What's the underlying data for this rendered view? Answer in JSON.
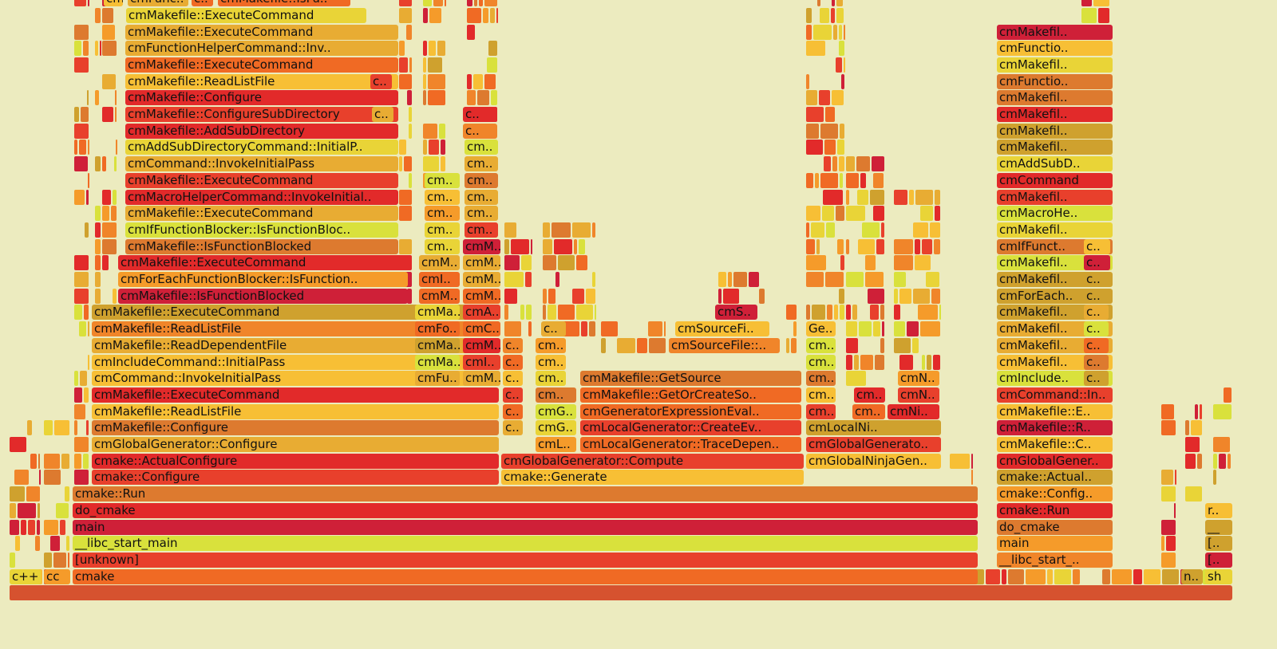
{
  "chart_data": {
    "type": "flame_graph",
    "palette": [
      "#e8402c",
      "#f06a24",
      "#f59b2a",
      "#f7bf35",
      "#e9d437",
      "#d9e13c",
      "#e22a2a",
      "#cf2038",
      "#e8ac33",
      "#dd7a2f",
      "#cfa12e",
      "#f0852a"
    ],
    "columns": [
      {
        "x0": 12,
        "x1": 1545,
        "stack": [
          ""
        ]
      },
      {
        "x0": 12,
        "x1": 52,
        "stack": [
          "c++"
        ]
      },
      {
        "x0": 55,
        "x1": 89,
        "stack": [
          "cc"
        ]
      },
      {
        "x0": 91,
        "x1": 1226,
        "stack": [
          "cmake",
          "[unknown]",
          "__libc_start_main",
          "main",
          "do_cmake",
          "cmake::Run"
        ]
      },
      {
        "x0": 115,
        "x1": 626,
        "stack": [
          "cmake::Configure",
          "cmake::ActualConfigure",
          "cmGlobalGenerator::Configure",
          "cmMakefile::Configure",
          "cmMakefile::ReadListFile",
          "cmMakefile::ExecuteCommand",
          "cmCommand::InvokeInitialPass",
          "cmIncludeCommand::InitialPass",
          "cmMakefile::ReadDependentFile",
          "cmMakefile::ReadListFile",
          "cmMakefile::ExecuteCommand"
        ]
      },
      {
        "x0": 148,
        "x1": 512,
        "stack": [
          "cmMakefile::IsFunctionBlocked",
          "cmForEachFunctionBlocker::IsFunction..",
          "cmMakefile::ExecuteCommand"
        ]
      },
      {
        "x0": 157,
        "x1": 500,
        "stack": [
          "cmMakefile::IsFunctionBlocked",
          "cmIfFunctionBlocker::IsFunctionBloc..",
          "cmMakefile::ExecuteCommand",
          "cmMacroHelperCommand::InvokeInitial..",
          "cmMakefile::ExecuteCommand",
          "cmCommand::InvokeInitialPass",
          "cmAddSubDirectoryCommand::InitialP..",
          "cmMakefile::AddSubDirectory",
          "cmMakefile::ConfigureSubDirectory",
          "cmMakefile::Configure",
          "cmMakefile::ReadListFile",
          "cmMakefile::ExecuteCommand",
          "cmFunctionHelperCommand::Inv..",
          "cmMakefile::ExecuteCommand"
        ]
      },
      {
        "x0": 628,
        "x1": 1008,
        "stack": [
          "cmake::Generate",
          "cmGlobalGenerator::Compute"
        ]
      },
      {
        "x0": 727,
        "x1": 1005,
        "stack": [
          "cmLocalGenerator::TraceDepen..",
          "cmLocalGenerator::CreateEv..",
          "cmGeneratorExpressionEval..",
          "cmMakefile::GetOrCreateSo..",
          "cmMakefile::GetSource"
        ]
      },
      {
        "x0": 1010,
        "x1": 1180,
        "stack": [
          "cmGlobalNinjaGen..",
          "cmGlobalGenerato..",
          "cmLocalNi.."
        ]
      },
      {
        "x0": 1249,
        "x1": 1395,
        "stack": [
          "__libc_start_..",
          "main",
          "do_cmake",
          "cmake::Run",
          "cmake::Config..",
          "cmake::Actual..",
          "cmGlobalGener..",
          "cmMakefile::C..",
          "cmMakefile::R..",
          "cmMakefile::E..",
          "cmCommand::In..",
          "cmInclude..",
          "cmMakefil..",
          "cmMakefil..",
          "cmMakefil..",
          "cmMakefil..",
          "cmForEach..",
          "cmMakefil..",
          "cmMakefil..",
          "cmIfFunct..",
          "cmMakefil..",
          "cmMacroHe..",
          "cmMakefil..",
          "cmCommand",
          "cmAddSubD..",
          "cmMakefil..",
          "cmMakefil..",
          "cmMakefil..",
          "cmMakefil..",
          "cmFunctio..",
          "cmMakefil..",
          "cmFunctio..",
          "cmMakefil.."
        ]
      },
      {
        "x0": 1510,
        "x1": 1545,
        "stack": [
          "sh",
          "[..",
          "[..",
          "__",
          "r.."
        ]
      }
    ],
    "extra_labels": [
      {
        "x0": 1480,
        "x1": 1508,
        "row": 1,
        "label": "n.."
      },
      {
        "x0": 130,
        "x1": 155,
        "row": 36,
        "label": "cm.."
      },
      {
        "x0": 160,
        "x1": 237,
        "row": 36,
        "label": "cmFunc.."
      },
      {
        "x0": 240,
        "x1": 268,
        "row": 36,
        "label": "c.."
      },
      {
        "x0": 273,
        "x1": 440,
        "row": 36,
        "label": "cmMakefile::IsFu.."
      },
      {
        "x0": 158,
        "x1": 460,
        "row": 35,
        "label": "cmMakefile::ExecuteCommand"
      },
      {
        "x0": 464,
        "x1": 492,
        "row": 31,
        "label": "c.."
      },
      {
        "x0": 466,
        "x1": 494,
        "row": 29,
        "label": "c.."
      },
      {
        "x0": 580,
        "x1": 624,
        "row": 29,
        "label": "c.."
      },
      {
        "x0": 580,
        "x1": 624,
        "row": 28,
        "label": "c.."
      },
      {
        "x0": 582,
        "x1": 625,
        "row": 27,
        "label": "cm.."
      },
      {
        "x0": 582,
        "x1": 625,
        "row": 26,
        "label": "cm.."
      },
      {
        "x0": 532,
        "x1": 577,
        "row": 25,
        "label": "cm.."
      },
      {
        "x0": 582,
        "x1": 625,
        "row": 25,
        "label": "cm.."
      },
      {
        "x0": 532,
        "x1": 577,
        "row": 24,
        "label": "cm.."
      },
      {
        "x0": 582,
        "x1": 625,
        "row": 24,
        "label": "cm.."
      },
      {
        "x0": 532,
        "x1": 577,
        "row": 23,
        "label": "cm.."
      },
      {
        "x0": 582,
        "x1": 625,
        "row": 23,
        "label": "cm.."
      },
      {
        "x0": 532,
        "x1": 577,
        "row": 22,
        "label": "cm.."
      },
      {
        "x0": 582,
        "x1": 625,
        "row": 22,
        "label": "cm.."
      },
      {
        "x0": 532,
        "x1": 577,
        "row": 21,
        "label": "cm.."
      },
      {
        "x0": 580,
        "x1": 628,
        "row": 21,
        "label": "cmM.."
      },
      {
        "x0": 525,
        "x1": 577,
        "row": 20,
        "label": "cmM.."
      },
      {
        "x0": 580,
        "x1": 628,
        "row": 20,
        "label": "cmM.."
      },
      {
        "x0": 525,
        "x1": 577,
        "row": 19,
        "label": "cmI.."
      },
      {
        "x0": 580,
        "x1": 628,
        "row": 19,
        "label": "cmM.."
      },
      {
        "x0": 525,
        "x1": 577,
        "row": 18,
        "label": "cmM.."
      },
      {
        "x0": 580,
        "x1": 628,
        "row": 18,
        "label": "cmM.."
      },
      {
        "x0": 520,
        "x1": 577,
        "row": 17,
        "label": "cmMa.."
      },
      {
        "x0": 580,
        "x1": 628,
        "row": 17,
        "label": "cmA.."
      },
      {
        "x0": 520,
        "x1": 577,
        "row": 16,
        "label": "cmFo.."
      },
      {
        "x0": 580,
        "x1": 628,
        "row": 16,
        "label": "cmC.."
      },
      {
        "x0": 520,
        "x1": 577,
        "row": 15,
        "label": "cmMa.."
      },
      {
        "x0": 580,
        "x1": 628,
        "row": 15,
        "label": "cmM.."
      },
      {
        "x0": 520,
        "x1": 577,
        "row": 14,
        "label": "cmMa.."
      },
      {
        "x0": 580,
        "x1": 628,
        "row": 14,
        "label": "cmI.."
      },
      {
        "x0": 520,
        "x1": 577,
        "row": 13,
        "label": "cmFu.."
      },
      {
        "x0": 580,
        "x1": 628,
        "row": 13,
        "label": "cmM.."
      },
      {
        "x0": 630,
        "x1": 656,
        "row": 15,
        "label": "c.."
      },
      {
        "x0": 630,
        "x1": 656,
        "row": 14,
        "label": "c.."
      },
      {
        "x0": 630,
        "x1": 656,
        "row": 13,
        "label": "c.."
      },
      {
        "x0": 630,
        "x1": 656,
        "row": 12,
        "label": "c.."
      },
      {
        "x0": 630,
        "x1": 656,
        "row": 11,
        "label": "c.."
      },
      {
        "x0": 630,
        "x1": 656,
        "row": 10,
        "label": "c.."
      },
      {
        "x0": 678,
        "x1": 710,
        "row": 16,
        "label": "c.."
      },
      {
        "x0": 671,
        "x1": 710,
        "row": 15,
        "label": "cm.."
      },
      {
        "x0": 671,
        "x1": 710,
        "row": 14,
        "label": "cm.."
      },
      {
        "x0": 671,
        "x1": 710,
        "row": 13,
        "label": "cm.."
      },
      {
        "x0": 671,
        "x1": 723,
        "row": 12,
        "label": "cm.."
      },
      {
        "x0": 671,
        "x1": 723,
        "row": 11,
        "label": "cmG.."
      },
      {
        "x0": 671,
        "x1": 723,
        "row": 10,
        "label": "cmG.."
      },
      {
        "x0": 671,
        "x1": 723,
        "row": 9,
        "label": "cmL.."
      },
      {
        "x0": 896,
        "x1": 950,
        "row": 17,
        "label": "cmS.."
      },
      {
        "x0": 846,
        "x1": 965,
        "row": 16,
        "label": "cmSourceFi.."
      },
      {
        "x0": 838,
        "x1": 978,
        "row": 15,
        "label": "cmSourceFile::.."
      },
      {
        "x0": 1010,
        "x1": 1048,
        "row": 16,
        "label": "Ge.."
      },
      {
        "x0": 1010,
        "x1": 1048,
        "row": 15,
        "label": "cm.."
      },
      {
        "x0": 1010,
        "x1": 1048,
        "row": 14,
        "label": "cm.."
      },
      {
        "x0": 1010,
        "x1": 1048,
        "row": 13,
        "label": "cm.."
      },
      {
        "x0": 1010,
        "x1": 1048,
        "row": 12,
        "label": "cm.."
      },
      {
        "x0": 1010,
        "x1": 1048,
        "row": 11,
        "label": "cm.."
      },
      {
        "x0": 1070,
        "x1": 1110,
        "row": 12,
        "label": "cm.."
      },
      {
        "x0": 1068,
        "x1": 1110,
        "row": 11,
        "label": "cm.."
      },
      {
        "x0": 1125,
        "x1": 1178,
        "row": 13,
        "label": "cmN.."
      },
      {
        "x0": 1125,
        "x1": 1178,
        "row": 12,
        "label": "cmN.."
      },
      {
        "x0": 1112,
        "x1": 1178,
        "row": 11,
        "label": "cmNi.."
      },
      {
        "x0": 1358,
        "x1": 1392,
        "row": 21,
        "label": "c.."
      },
      {
        "x0": 1358,
        "x1": 1392,
        "row": 20,
        "label": "c.."
      },
      {
        "x0": 1358,
        "x1": 1390,
        "row": 19,
        "label": "c.."
      },
      {
        "x0": 1358,
        "x1": 1390,
        "row": 18,
        "label": "c.."
      },
      {
        "x0": 1358,
        "x1": 1390,
        "row": 17,
        "label": "c.."
      },
      {
        "x0": 1358,
        "x1": 1390,
        "row": 16,
        "label": "c.."
      },
      {
        "x0": 1358,
        "x1": 1390,
        "row": 15,
        "label": "c.."
      },
      {
        "x0": 1358,
        "x1": 1390,
        "row": 14,
        "label": "c.."
      },
      {
        "x0": 1358,
        "x1": 1390,
        "row": 13,
        "label": "c.."
      }
    ],
    "fill": [
      {
        "x0": 12,
        "x1": 1545,
        "rows": [
          0,
          1
        ]
      },
      {
        "x0": 12,
        "x1": 52,
        "rows": [
          2,
          10
        ]
      },
      {
        "x0": 55,
        "x1": 89,
        "rows": [
          2,
          10
        ]
      },
      {
        "x0": 93,
        "x1": 113,
        "rows": [
          2,
          40
        ]
      },
      {
        "x0": 119,
        "x1": 128,
        "rows": [
          10,
          40
        ]
      },
      {
        "x0": 128,
        "x1": 148,
        "rows": [
          10,
          40
        ]
      },
      {
        "x0": 500,
        "x1": 518,
        "rows": [
          18,
          40
        ]
      },
      {
        "x0": 530,
        "x1": 560,
        "rows": [
          25,
          40
        ]
      },
      {
        "x0": 585,
        "x1": 625,
        "rows": [
          29,
          40
        ]
      },
      {
        "x0": 632,
        "x1": 668,
        "rows": [
          16,
          22
        ]
      },
      {
        "x0": 680,
        "x1": 748,
        "rows": [
          16,
          22
        ]
      },
      {
        "x0": 753,
        "x1": 836,
        "rows": [
          15,
          16
        ]
      },
      {
        "x0": 900,
        "x1": 960,
        "rows": [
          18,
          19
        ]
      },
      {
        "x0": 985,
        "x1": 1000,
        "rows": [
          15,
          18
        ]
      },
      {
        "x0": 1010,
        "x1": 1060,
        "rows": [
          17,
          40
        ]
      },
      {
        "x0": 1060,
        "x1": 1110,
        "rows": [
          13,
          26
        ]
      },
      {
        "x0": 1120,
        "x1": 1180,
        "rows": [
          14,
          24
        ]
      },
      {
        "x0": 1190,
        "x1": 1220,
        "rows": [
          2,
          8
        ]
      },
      {
        "x0": 1355,
        "x1": 1392,
        "rows": [
          22,
          40
        ]
      },
      {
        "x0": 1455,
        "x1": 1475,
        "rows": [
          2,
          11
        ]
      },
      {
        "x0": 1485,
        "x1": 1508,
        "rows": [
          2,
          11
        ]
      },
      {
        "x0": 1520,
        "x1": 1545,
        "rows": [
          7,
          12
        ]
      }
    ]
  }
}
